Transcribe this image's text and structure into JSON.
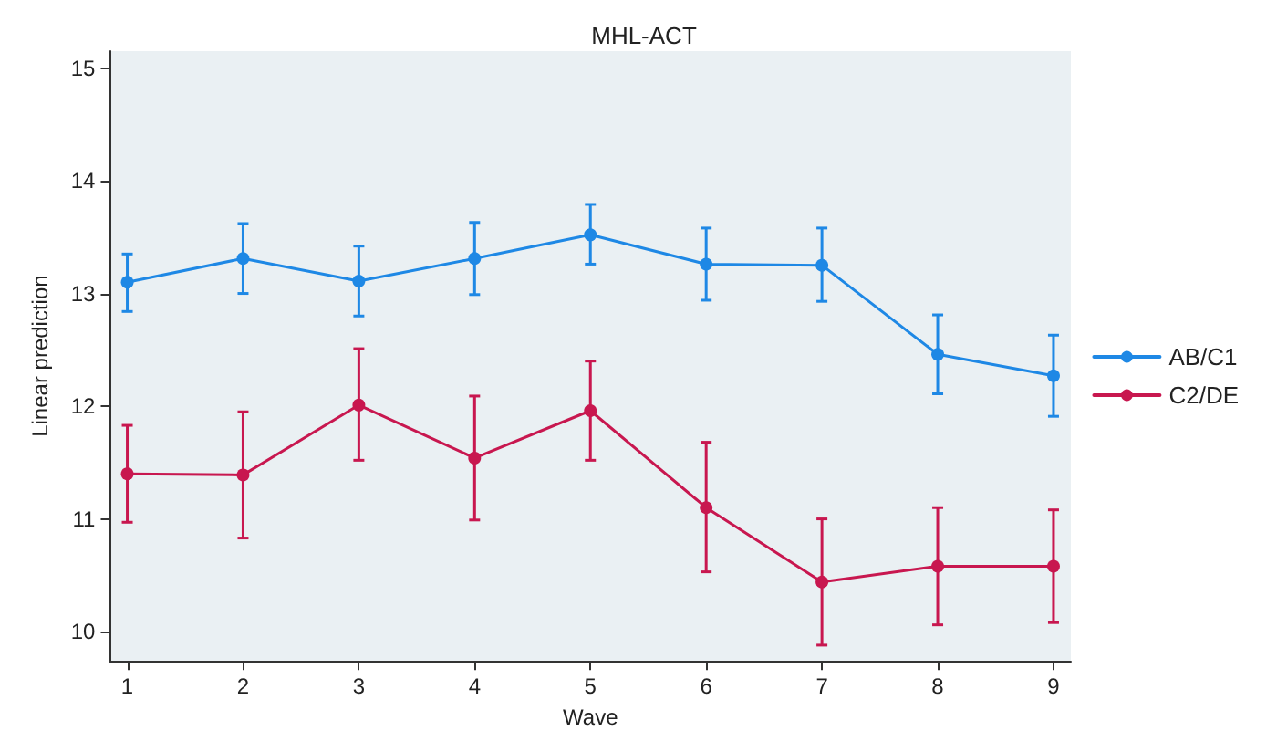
{
  "chart_data": {
    "type": "line",
    "title": "MHL-ACT",
    "xlabel": "Wave",
    "ylabel": "Linear prediction",
    "x": [
      1,
      2,
      3,
      4,
      5,
      6,
      7,
      8,
      9
    ],
    "xlim": [
      0.85,
      9.15
    ],
    "xticks": [
      1,
      2,
      3,
      4,
      5,
      6,
      7,
      8,
      9
    ],
    "ylim": [
      9.74,
      15.15
    ],
    "yticks": [
      10,
      11,
      12,
      13,
      14,
      15
    ],
    "grid": false,
    "legend": "right",
    "marker": "circle",
    "line_style": "solid",
    "series": [
      {
        "name": "AB/C1",
        "color": "#1e88e5",
        "values": [
          13.1,
          13.31,
          13.11,
          13.31,
          13.52,
          13.26,
          13.25,
          12.46,
          12.27
        ],
        "errors": [
          [
            12.84,
            13.35
          ],
          [
            13.0,
            13.62
          ],
          [
            12.8,
            13.42
          ],
          [
            12.99,
            13.63
          ],
          [
            13.26,
            13.79
          ],
          [
            12.94,
            13.58
          ],
          [
            12.93,
            13.58
          ],
          [
            12.11,
            12.81
          ],
          [
            11.91,
            12.63
          ]
        ]
      },
      {
        "name": "C2/DE",
        "color": "#c8174f",
        "values": [
          11.4,
          11.39,
          12.01,
          11.54,
          11.96,
          11.1,
          10.44,
          10.58,
          10.58
        ],
        "errors": [
          [
            10.97,
            11.83
          ],
          [
            10.83,
            11.95
          ],
          [
            11.52,
            12.51
          ],
          [
            10.99,
            12.09
          ],
          [
            11.52,
            12.4
          ],
          [
            10.53,
            11.68
          ],
          [
            9.88,
            11.0
          ],
          [
            10.06,
            11.1
          ],
          [
            10.08,
            11.08
          ]
        ]
      }
    ]
  }
}
